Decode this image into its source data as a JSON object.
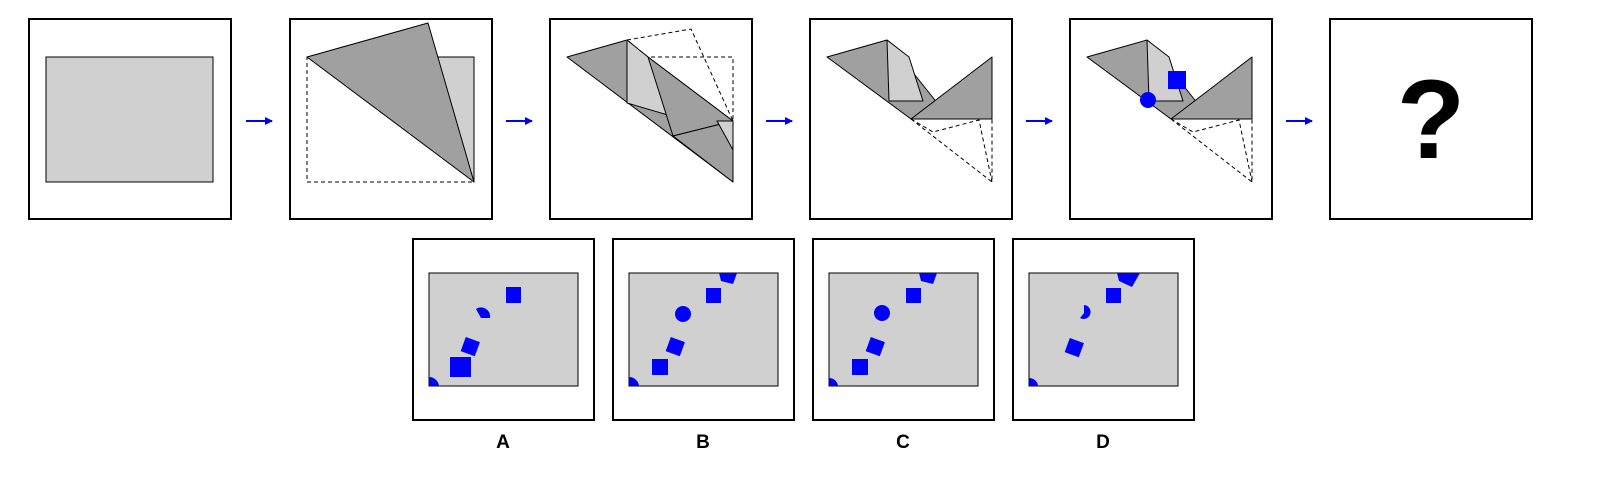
{
  "question_mark": "?",
  "options": [
    {
      "label": "A"
    },
    {
      "label": "B"
    },
    {
      "label": "C"
    },
    {
      "label": "D"
    }
  ],
  "colors": {
    "paper": "#d0d0d0",
    "fold": "#a0a0a0",
    "punch": "#0000ff",
    "arrow": "#0000ff"
  },
  "icons": [
    "arrow-right-icon",
    "circle-punch-icon",
    "square-punch-icon"
  ]
}
